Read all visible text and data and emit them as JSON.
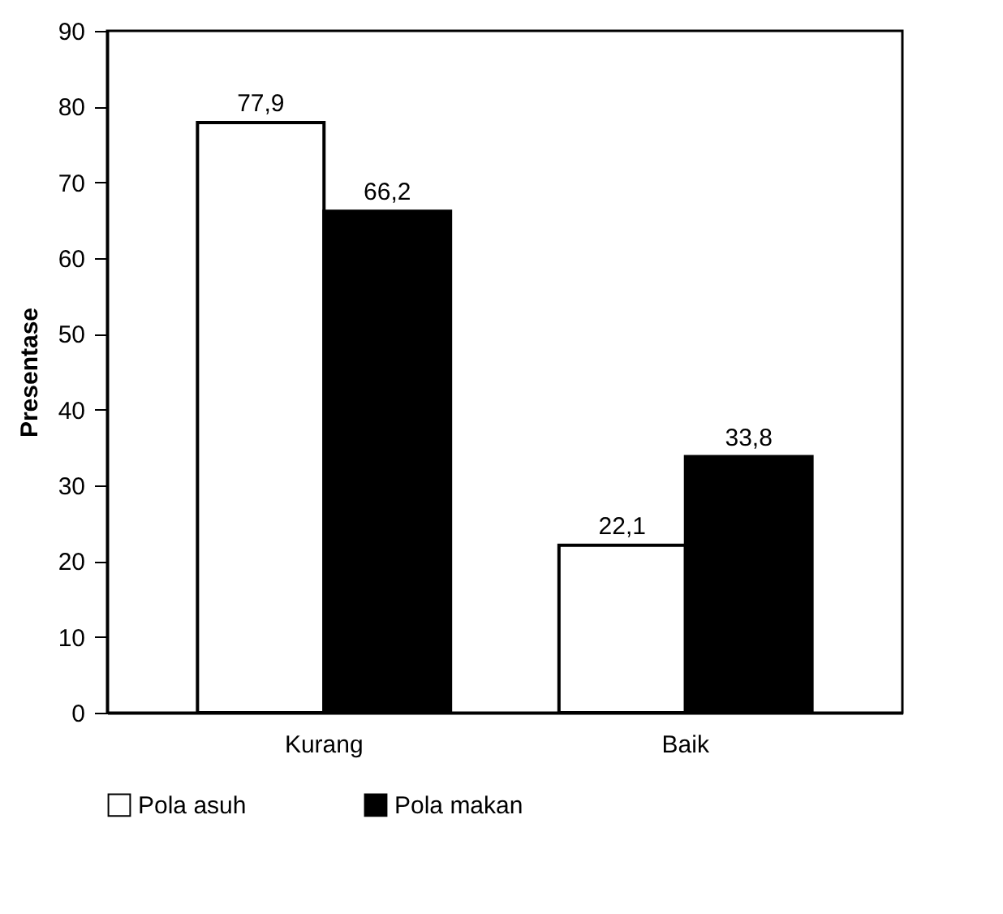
{
  "chart_data": {
    "type": "bar",
    "ylabel": "Presentase",
    "categories": [
      "Kurang",
      "Baik"
    ],
    "series": [
      {
        "name": "Pola asuh",
        "color": "#ffffff",
        "values": [
          77.9,
          22.1
        ],
        "value_labels": [
          "77,9",
          "22,1"
        ]
      },
      {
        "name": "Pola makan",
        "color": "#000000",
        "values": [
          66.2,
          33.8
        ],
        "value_labels": [
          "66,2",
          "33,8"
        ]
      }
    ],
    "ylim": [
      0,
      90
    ],
    "yticks": [
      0,
      10,
      20,
      30,
      40,
      50,
      60,
      70,
      80,
      90
    ],
    "legend": "bottom"
  }
}
